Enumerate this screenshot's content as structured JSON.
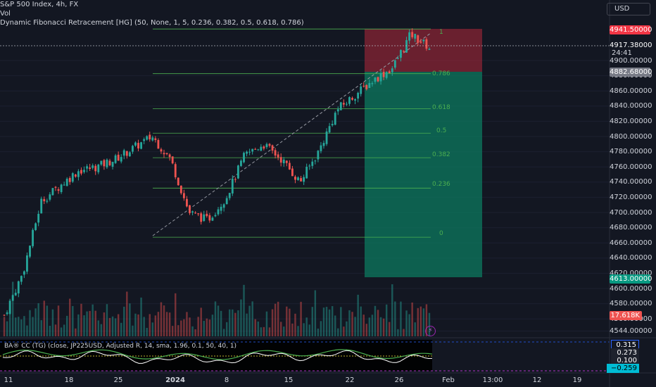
{
  "legend": {
    "symbol": "S&P 500 Index, 4h, FX",
    "volume": "Vol",
    "indicator": "Dynamic Fibonacci Retracement [HG] (50, None, 1, 5, 0.236, 0.382, 0.5, 0.618, 0.786)"
  },
  "currency_button": "USD",
  "price_axis": {
    "ticks": [
      "4900.00000",
      "4880.00000",
      "4860.00000",
      "4840.00000",
      "4820.00000",
      "4800.00000",
      "4780.00000",
      "4760.00000",
      "4740.00000",
      "4720.00000",
      "4700.00000",
      "4680.00000",
      "4660.00000",
      "4640.00000",
      "4620.00000",
      "4600.00000",
      "4580.00000",
      "4560.00000",
      "4544.00000"
    ],
    "tags": {
      "top_zone": "4941.50000",
      "last_price": "4917.38000",
      "countdown": "24:41",
      "fib_level": "4882.68000",
      "bottom_zone": "4613.00000",
      "volume": "17.618K"
    }
  },
  "fib_levels": [
    "1",
    "0.786",
    "0.618",
    "0.5",
    "0.382",
    "0.236",
    "0"
  ],
  "oscillator": {
    "label": "BA® CC (TG) (close, JP225USD, Adjusted R, 14, sma, 1.96, 0.1, 50, 40, 1)",
    "values": [
      "0.315",
      "0.273",
      "0.100",
      "−0.259"
    ]
  },
  "time_axis": [
    "11",
    "18",
    "25",
    "2024",
    "8",
    "15",
    "22",
    "26",
    "Feb",
    "13:00",
    "12",
    "19"
  ],
  "colors": {
    "background": "#131722",
    "up": "#26a69a",
    "down": "#ef5350",
    "fib": "#4caf50",
    "risk_zone": "#b2283b",
    "reward_zone": "#0c7a5f"
  },
  "chart_data": {
    "type": "candlestick",
    "title": "S&P 500 Index, 4h, FX",
    "ylim": [
      4544,
      4958
    ],
    "approx_close_path": [
      {
        "date": "Dec 6",
        "close": 4565
      },
      {
        "date": "Dec 11",
        "close": 4620
      },
      {
        "date": "Dec 13",
        "close": 4715
      },
      {
        "date": "Dec 15",
        "close": 4735
      },
      {
        "date": "Dec 18",
        "close": 4755
      },
      {
        "date": "Dec 20",
        "close": 4760
      },
      {
        "date": "Dec 22",
        "close": 4770
      },
      {
        "date": "Dec 27",
        "close": 4785
      },
      {
        "date": "Dec 29",
        "close": 4800
      },
      {
        "date": "Jan 2",
        "close": 4770
      },
      {
        "date": "Jan 4",
        "close": 4700
      },
      {
        "date": "Jan 5",
        "close": 4690
      },
      {
        "date": "Jan 8",
        "close": 4720
      },
      {
        "date": "Jan 10",
        "close": 4775
      },
      {
        "date": "Jan 12",
        "close": 4790
      },
      {
        "date": "Jan 15",
        "close": 4770
      },
      {
        "date": "Jan 17",
        "close": 4740
      },
      {
        "date": "Jan 18",
        "close": 4780
      },
      {
        "date": "Jan 19",
        "close": 4835
      },
      {
        "date": "Jan 22",
        "close": 4855
      },
      {
        "date": "Jan 24",
        "close": 4875
      },
      {
        "date": "Jan 26",
        "close": 4890
      },
      {
        "date": "Jan 29",
        "close": 4935
      },
      {
        "date": "Jan 30",
        "close": 4917
      }
    ],
    "fibonacci": [
      {
        "level": "1",
        "price": 4941.5
      },
      {
        "level": "0.786",
        "price": 4882.68
      },
      {
        "level": "0.618",
        "price": 4836.7
      },
      {
        "level": "0.5",
        "price": 4804.4
      },
      {
        "level": "0.382",
        "price": 4772.1
      },
      {
        "level": "0.236",
        "price": 4732.1
      },
      {
        "level": "0",
        "price": 4667.5
      }
    ],
    "last_price": 4917.38
  }
}
